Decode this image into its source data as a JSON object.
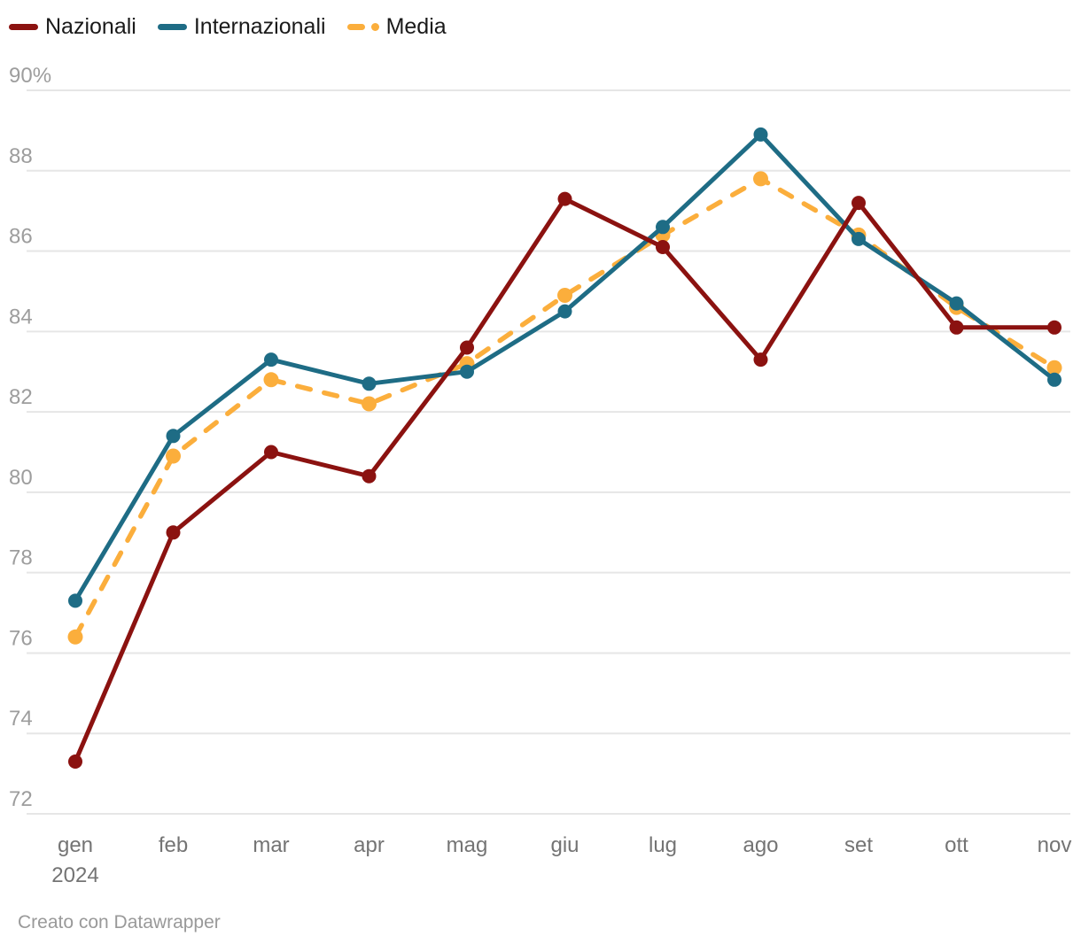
{
  "chart_data": {
    "type": "line",
    "categories": [
      "gen",
      "feb",
      "mar",
      "apr",
      "mag",
      "giu",
      "lug",
      "ago",
      "set",
      "ott",
      "nov"
    ],
    "x_year_label": "2024",
    "series": [
      {
        "name": "Nazionali",
        "color": "#8b1210",
        "line_style": "solid",
        "values": [
          73.3,
          79.0,
          81.0,
          80.4,
          83.6,
          87.3,
          86.1,
          83.3,
          87.2,
          84.1,
          84.1
        ]
      },
      {
        "name": "Internazionali",
        "color": "#1e6c85",
        "line_style": "solid",
        "values": [
          77.3,
          81.4,
          83.3,
          82.7,
          83.0,
          84.5,
          86.6,
          88.9,
          86.3,
          84.7,
          82.8
        ]
      },
      {
        "name": "Media",
        "color": "#fbae3c",
        "line_style": "dashed",
        "values": [
          76.4,
          80.9,
          82.8,
          82.2,
          83.2,
          84.9,
          86.4,
          87.8,
          86.4,
          84.6,
          83.1
        ]
      }
    ],
    "ylim": [
      72,
      90
    ],
    "yticks": [
      90,
      88,
      86,
      84,
      82,
      80,
      78,
      76,
      74,
      72
    ],
    "ytick_top_label": "90%",
    "grid": "horizontal",
    "legend_position": "top-left"
  },
  "footer": {
    "credit": "Creato con Datawrapper"
  },
  "colors": {
    "background": "#ffffff",
    "grid": "#e6e6e6",
    "y_tick_label": "#9d9d9d",
    "x_tick_label": "#747474",
    "legend_text": "#1a1a1a",
    "footer_text": "#999999"
  }
}
